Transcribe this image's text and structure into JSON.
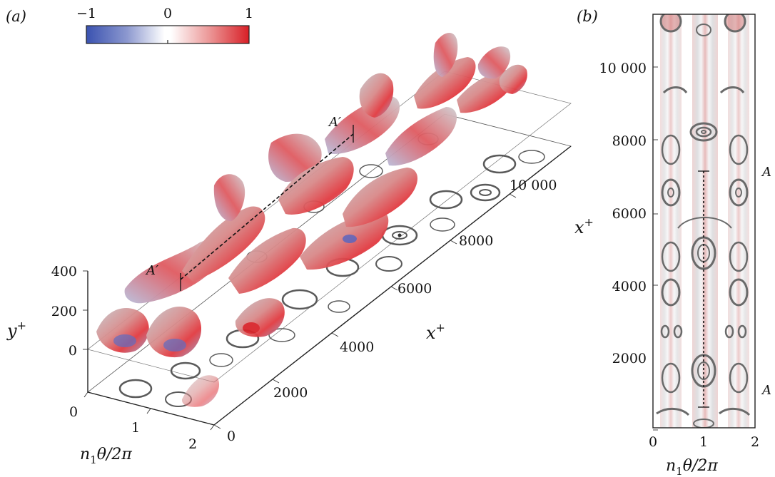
{
  "panel_a": {
    "label": "(a)",
    "colorbar": {
      "min_label": "−1",
      "mid_label": "0",
      "max_label": "1",
      "colors": {
        "low": "#3a52b0",
        "mid": "#ffffff",
        "high": "#e0202a"
      }
    },
    "section_labels": [
      "A′",
      "A′"
    ],
    "axes": {
      "y_label": "y",
      "y_sup": "+",
      "y_ticks": [
        "400",
        "200",
        "0"
      ],
      "theta_label_pre": "n",
      "theta_sub": "1",
      "theta_label_post": "θ/2π",
      "theta_ticks": [
        "0",
        "1",
        "2"
      ],
      "x_label": "x",
      "x_sup": "+",
      "x_ticks": [
        "0",
        "2000",
        "4000",
        "6000",
        "8000",
        "10 000"
      ]
    }
  },
  "panel_b": {
    "label": "(b)",
    "section_labels": [
      "A",
      "A"
    ],
    "axes": {
      "y_label": "x",
      "y_sup": "+",
      "y_ticks": [
        "10 000",
        "8000",
        "6000",
        "4000",
        "2000"
      ],
      "x_label_pre": "n",
      "x_sub": "1",
      "x_label_post": "θ/2π",
      "x_ticks": [
        "0",
        "1",
        "2"
      ]
    }
  }
}
